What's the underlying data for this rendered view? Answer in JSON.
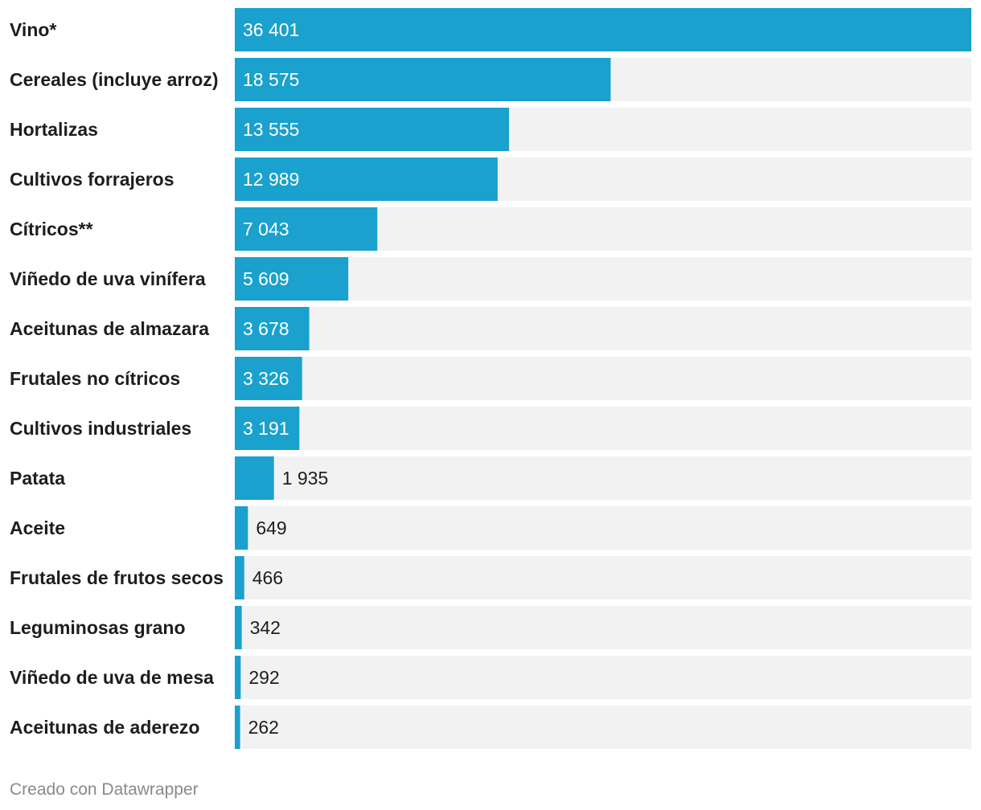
{
  "chart_data": {
    "type": "bar",
    "orientation": "horizontal",
    "categories": [
      "Vino*",
      "Cereales (incluye arroz)",
      "Hortalizas",
      "Cultivos forrajeros",
      "Cítricos**",
      "Viñedo de uva vinífera",
      "Aceitunas de almazara",
      "Frutales no cítricos",
      "Cultivos industriales",
      "Patata",
      "Aceite",
      "Frutales de frutos secos",
      "Leguminosas grano",
      "Viñedo de uva de mesa",
      "Aceitunas de aderezo"
    ],
    "values": [
      36401,
      18575,
      13555,
      12989,
      7043,
      5609,
      3678,
      3326,
      3191,
      1935,
      649,
      466,
      342,
      292,
      262
    ],
    "value_labels": [
      "36 401",
      "18 575",
      "13 555",
      "12 989",
      "7 043",
      "5 609",
      "3 678",
      "3 326",
      "3 191",
      "1 935",
      "649",
      "466",
      "342",
      "292",
      "262"
    ],
    "xlim": [
      0,
      36401
    ],
    "bar_color": "#1aa1cd",
    "track_color": "#f2f2f2",
    "grid": false,
    "legend": "none"
  },
  "footer": {
    "credit": "Creado con Datawrapper"
  }
}
